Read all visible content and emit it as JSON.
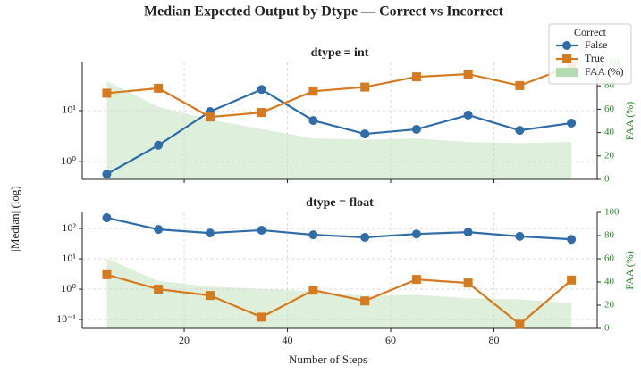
{
  "title": "Median Expected Output by Dtype — Correct vs Incorrect",
  "xlabel": "Number of Steps",
  "ylabel": "|Median| (log)",
  "chart_data": [
    {
      "type": "line",
      "title": "dtype = int",
      "y_scale": "log",
      "grid": true,
      "x": [
        5,
        15,
        25,
        35,
        45,
        55,
        65,
        75,
        85,
        95
      ],
      "xlim": [
        0.25,
        100
      ],
      "xticks": [
        20,
        40,
        60,
        80
      ],
      "ylim": [
        0.45,
        88
      ],
      "yticks": [
        {
          "value": 1,
          "label": "10⁰"
        },
        {
          "value": 10,
          "label": "10¹"
        }
      ],
      "y2lim": [
        0,
        100
      ],
      "y2ticks": [
        0,
        20,
        40,
        60,
        80,
        100
      ],
      "y2label": "FAA (%)",
      "legend": {
        "title": "Correct",
        "corner": "upper right"
      },
      "series": [
        {
          "name": "False",
          "color": "#2f6ca8",
          "marker": "circle",
          "values": [
            0.57,
            2.1,
            9.6,
            26,
            6.4,
            3.5,
            4.3,
            8.2,
            4.1,
            5.7
          ]
        },
        {
          "name": "True",
          "color": "#d67a1f",
          "marker": "square",
          "values": [
            22,
            27.5,
            7.5,
            9.2,
            24,
            29,
            46,
            52,
            31,
            75
          ]
        },
        {
          "name": "FAA (%)",
          "color": "#b5dbb0",
          "kind": "area",
          "axis": "y2",
          "values": [
            84,
            62,
            51,
            43,
            35,
            34,
            35,
            32,
            31,
            32
          ]
        }
      ]
    },
    {
      "type": "line",
      "title": "dtype = float",
      "y_scale": "log",
      "grid": true,
      "x": [
        5,
        15,
        25,
        35,
        45,
        55,
        65,
        75,
        85,
        95
      ],
      "xlim": [
        0.25,
        100
      ],
      "xticks": [
        20,
        40,
        60,
        80
      ],
      "ylim": [
        0.051,
        340
      ],
      "yticks": [
        {
          "value": 0.1,
          "label": "10⁻¹"
        },
        {
          "value": 1,
          "label": "10⁰"
        },
        {
          "value": 10,
          "label": "10¹"
        },
        {
          "value": 100,
          "label": "10²"
        }
      ],
      "y2lim": [
        0,
        100
      ],
      "y2ticks": [
        0,
        20,
        40,
        60,
        80,
        100
      ],
      "y2label": "FAA (%)",
      "series": [
        {
          "color": "#2f6ca8",
          "marker": "circle",
          "values": [
            226,
            93,
            71,
            88,
            62,
            51,
            66,
            76,
            55,
            44
          ]
        },
        {
          "color": "#d67a1f",
          "marker": "square",
          "values": [
            3.0,
            1.0,
            0.62,
            0.12,
            0.93,
            0.41,
            2.1,
            1.6,
            0.07,
            2.0
          ]
        },
        {
          "color": "#b5dbb0",
          "kind": "area",
          "axis": "y2",
          "values": [
            60,
            41,
            36,
            34,
            32,
            28,
            29,
            26,
            25,
            22
          ]
        }
      ]
    }
  ]
}
